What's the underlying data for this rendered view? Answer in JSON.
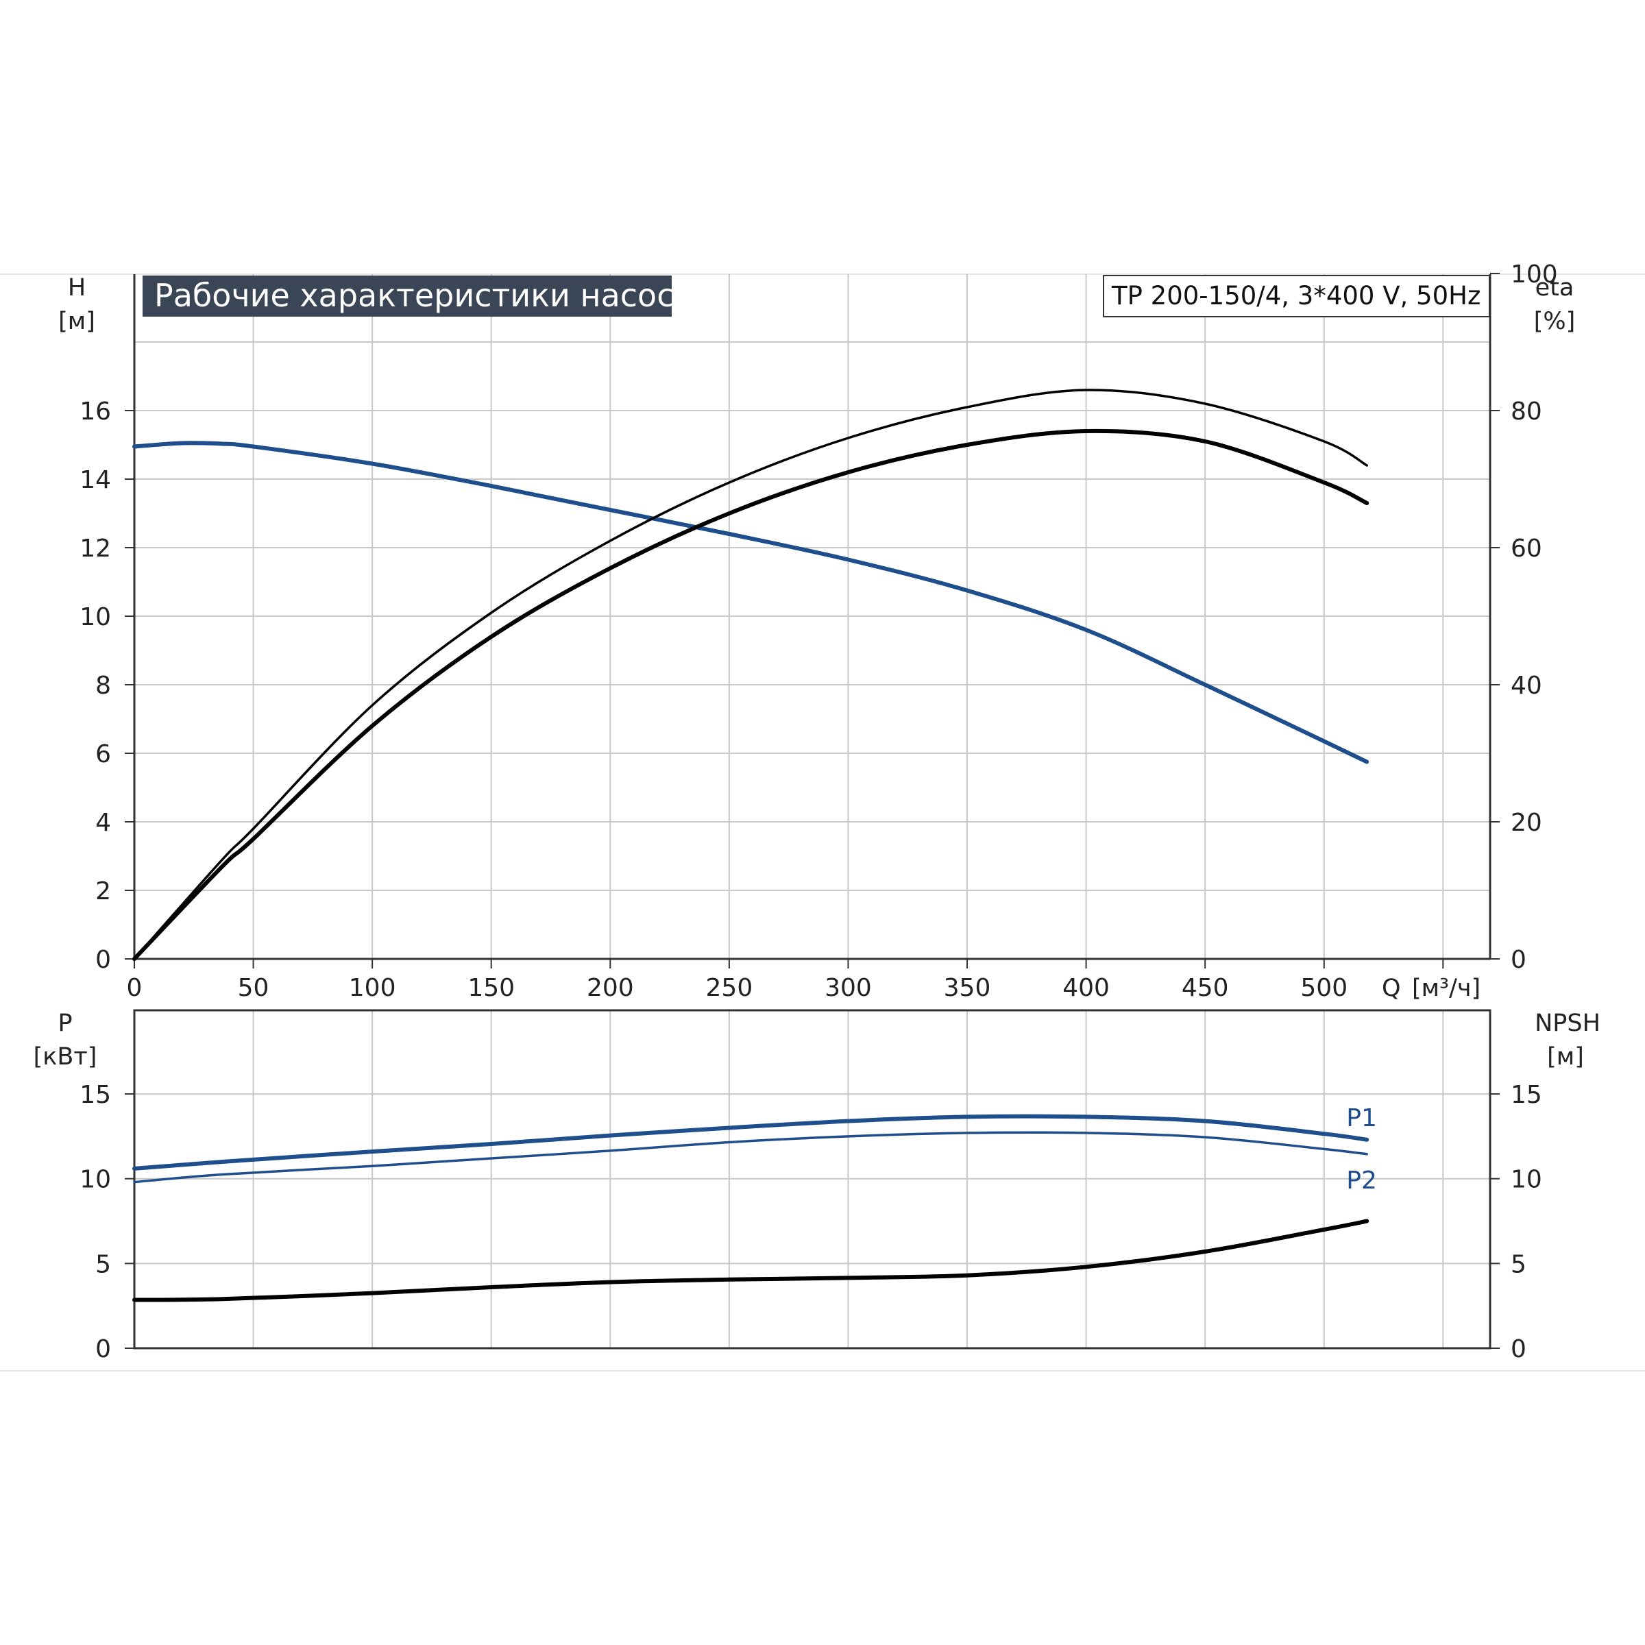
{
  "chart_data": [
    {
      "type": "line",
      "title": "Рабочие характеристики насоса",
      "model": "TP 200-150/4, 3*400 V, 50Hz",
      "ylabel": "H",
      "yunit": "[м]",
      "y2label": "eta",
      "y2unit": "[%]",
      "xlabel": "Q",
      "xunit": "[м³/ч]",
      "xlim": [
        0,
        570
      ],
      "ylim": [
        0,
        20
      ],
      "y2lim": [
        0,
        100
      ],
      "xticks": [
        "0",
        "50",
        "100",
        "150",
        "200",
        "250",
        "300",
        "350",
        "400",
        "450",
        "500"
      ],
      "yticks": [
        "0",
        "2",
        "4",
        "6",
        "8",
        "10",
        "12",
        "14",
        "16"
      ],
      "y2ticks": [
        "0",
        "20",
        "40",
        "60",
        "80",
        "100"
      ],
      "grid": true,
      "series": [
        {
          "color": "#1f4e8c",
          "axis": "left",
          "x": [
            0,
            20,
            37,
            50,
            100,
            150,
            200,
            250,
            300,
            350,
            400,
            450,
            500,
            518
          ],
          "y": [
            14.95,
            15.05,
            15.03,
            14.95,
            14.45,
            13.8,
            13.1,
            12.4,
            11.65,
            10.75,
            9.6,
            8.0,
            6.35,
            5.75
          ]
        },
        {
          "color": "#000000",
          "axis": "right",
          "x": [
            0,
            37,
            50,
            100,
            150,
            200,
            250,
            300,
            350,
            400,
            450,
            500,
            518
          ],
          "y": [
            0,
            14.5,
            19,
            37,
            50.5,
            61,
            69.5,
            76,
            80.5,
            83,
            81,
            75.5,
            72
          ]
        },
        {
          "color": "#000000",
          "axis": "right",
          "x": [
            0,
            37,
            50,
            100,
            150,
            200,
            250,
            300,
            350,
            400,
            450,
            500,
            518
          ],
          "y": [
            0,
            13.5,
            17.5,
            34,
            47,
            57,
            65,
            71,
            75,
            77,
            75.5,
            69.5,
            66.5
          ]
        }
      ]
    },
    {
      "type": "line",
      "ylabel": "P",
      "yunit": "[кВт]",
      "y2label": "NPSH",
      "y2unit": "[м]",
      "xlim": [
        0,
        570
      ],
      "ylim": [
        0,
        20
      ],
      "y2lim": [
        0,
        20
      ],
      "yticks": [
        "0",
        "5",
        "10",
        "15"
      ],
      "y2ticks": [
        "0",
        "5",
        "10",
        "15"
      ],
      "grid": true,
      "series": [
        {
          "name": "P1",
          "color": "#1f4e8c",
          "axis": "left",
          "x": [
            0,
            37,
            100,
            150,
            200,
            250,
            300,
            350,
            400,
            450,
            500,
            518
          ],
          "y": [
            10.6,
            11.0,
            11.6,
            12.05,
            12.55,
            13.0,
            13.4,
            13.65,
            13.65,
            13.4,
            12.65,
            12.3
          ]
        },
        {
          "name": "P2",
          "color": "#1f4e8c",
          "axis": "left",
          "x": [
            0,
            37,
            100,
            150,
            200,
            250,
            300,
            350,
            400,
            450,
            500,
            518
          ],
          "y": [
            9.8,
            10.25,
            10.75,
            11.2,
            11.65,
            12.15,
            12.5,
            12.7,
            12.7,
            12.45,
            11.75,
            11.45
          ]
        },
        {
          "color": "#000000",
          "axis": "right",
          "x": [
            0,
            37,
            100,
            150,
            200,
            250,
            300,
            350,
            400,
            450,
            500,
            518
          ],
          "y": [
            2.85,
            2.9,
            3.25,
            3.6,
            3.9,
            4.05,
            4.15,
            4.3,
            4.8,
            5.7,
            7.0,
            7.5
          ]
        }
      ]
    }
  ]
}
